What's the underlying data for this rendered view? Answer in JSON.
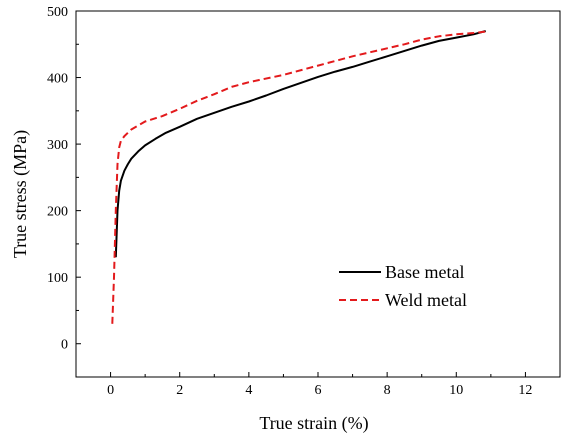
{
  "chart_data": {
    "type": "line",
    "xlabel": "True strain (%)",
    "ylabel": "True stress (MPa)",
    "xlim": [
      -1,
      13
    ],
    "ylim": [
      -50,
      500
    ],
    "xticks": [
      0,
      2,
      4,
      6,
      8,
      10,
      12
    ],
    "yticks": [
      0,
      100,
      200,
      300,
      400,
      500
    ],
    "grid": false,
    "legend_position": "lower-right",
    "series": [
      {
        "name": "Base metal",
        "color": "#000000",
        "style": "solid",
        "x": [
          0.15,
          0.2,
          0.25,
          0.3,
          0.4,
          0.5,
          0.6,
          0.8,
          1.0,
          1.3,
          1.6,
          2.0,
          2.5,
          3.0,
          3.5,
          4.0,
          4.5,
          5.0,
          5.5,
          6.0,
          6.5,
          7.0,
          7.5,
          8.0,
          8.5,
          9.0,
          9.5,
          10.0,
          10.5,
          10.85
        ],
        "y": [
          130,
          200,
          230,
          245,
          260,
          270,
          278,
          289,
          298,
          308,
          317,
          326,
          338,
          347,
          356,
          364,
          373,
          383,
          392,
          401,
          409,
          416,
          424,
          432,
          440,
          448,
          455,
          460,
          465,
          470
        ]
      },
      {
        "name": "Weld metal",
        "color": "#e31a1c",
        "style": "dashed",
        "x": [
          0.05,
          0.1,
          0.15,
          0.2,
          0.25,
          0.3,
          0.4,
          0.6,
          0.8,
          1.0,
          1.5,
          2.0,
          2.5,
          3.0,
          3.5,
          4.0,
          5.0,
          6.0,
          7.0,
          8.0,
          8.5,
          9.0,
          9.5,
          10.0,
          10.5,
          10.85
        ],
        "y": [
          30,
          100,
          200,
          270,
          295,
          305,
          312,
          322,
          328,
          334,
          342,
          353,
          365,
          375,
          386,
          393,
          404,
          418,
          432,
          444,
          450,
          457,
          462,
          465,
          467,
          469
        ]
      }
    ]
  }
}
